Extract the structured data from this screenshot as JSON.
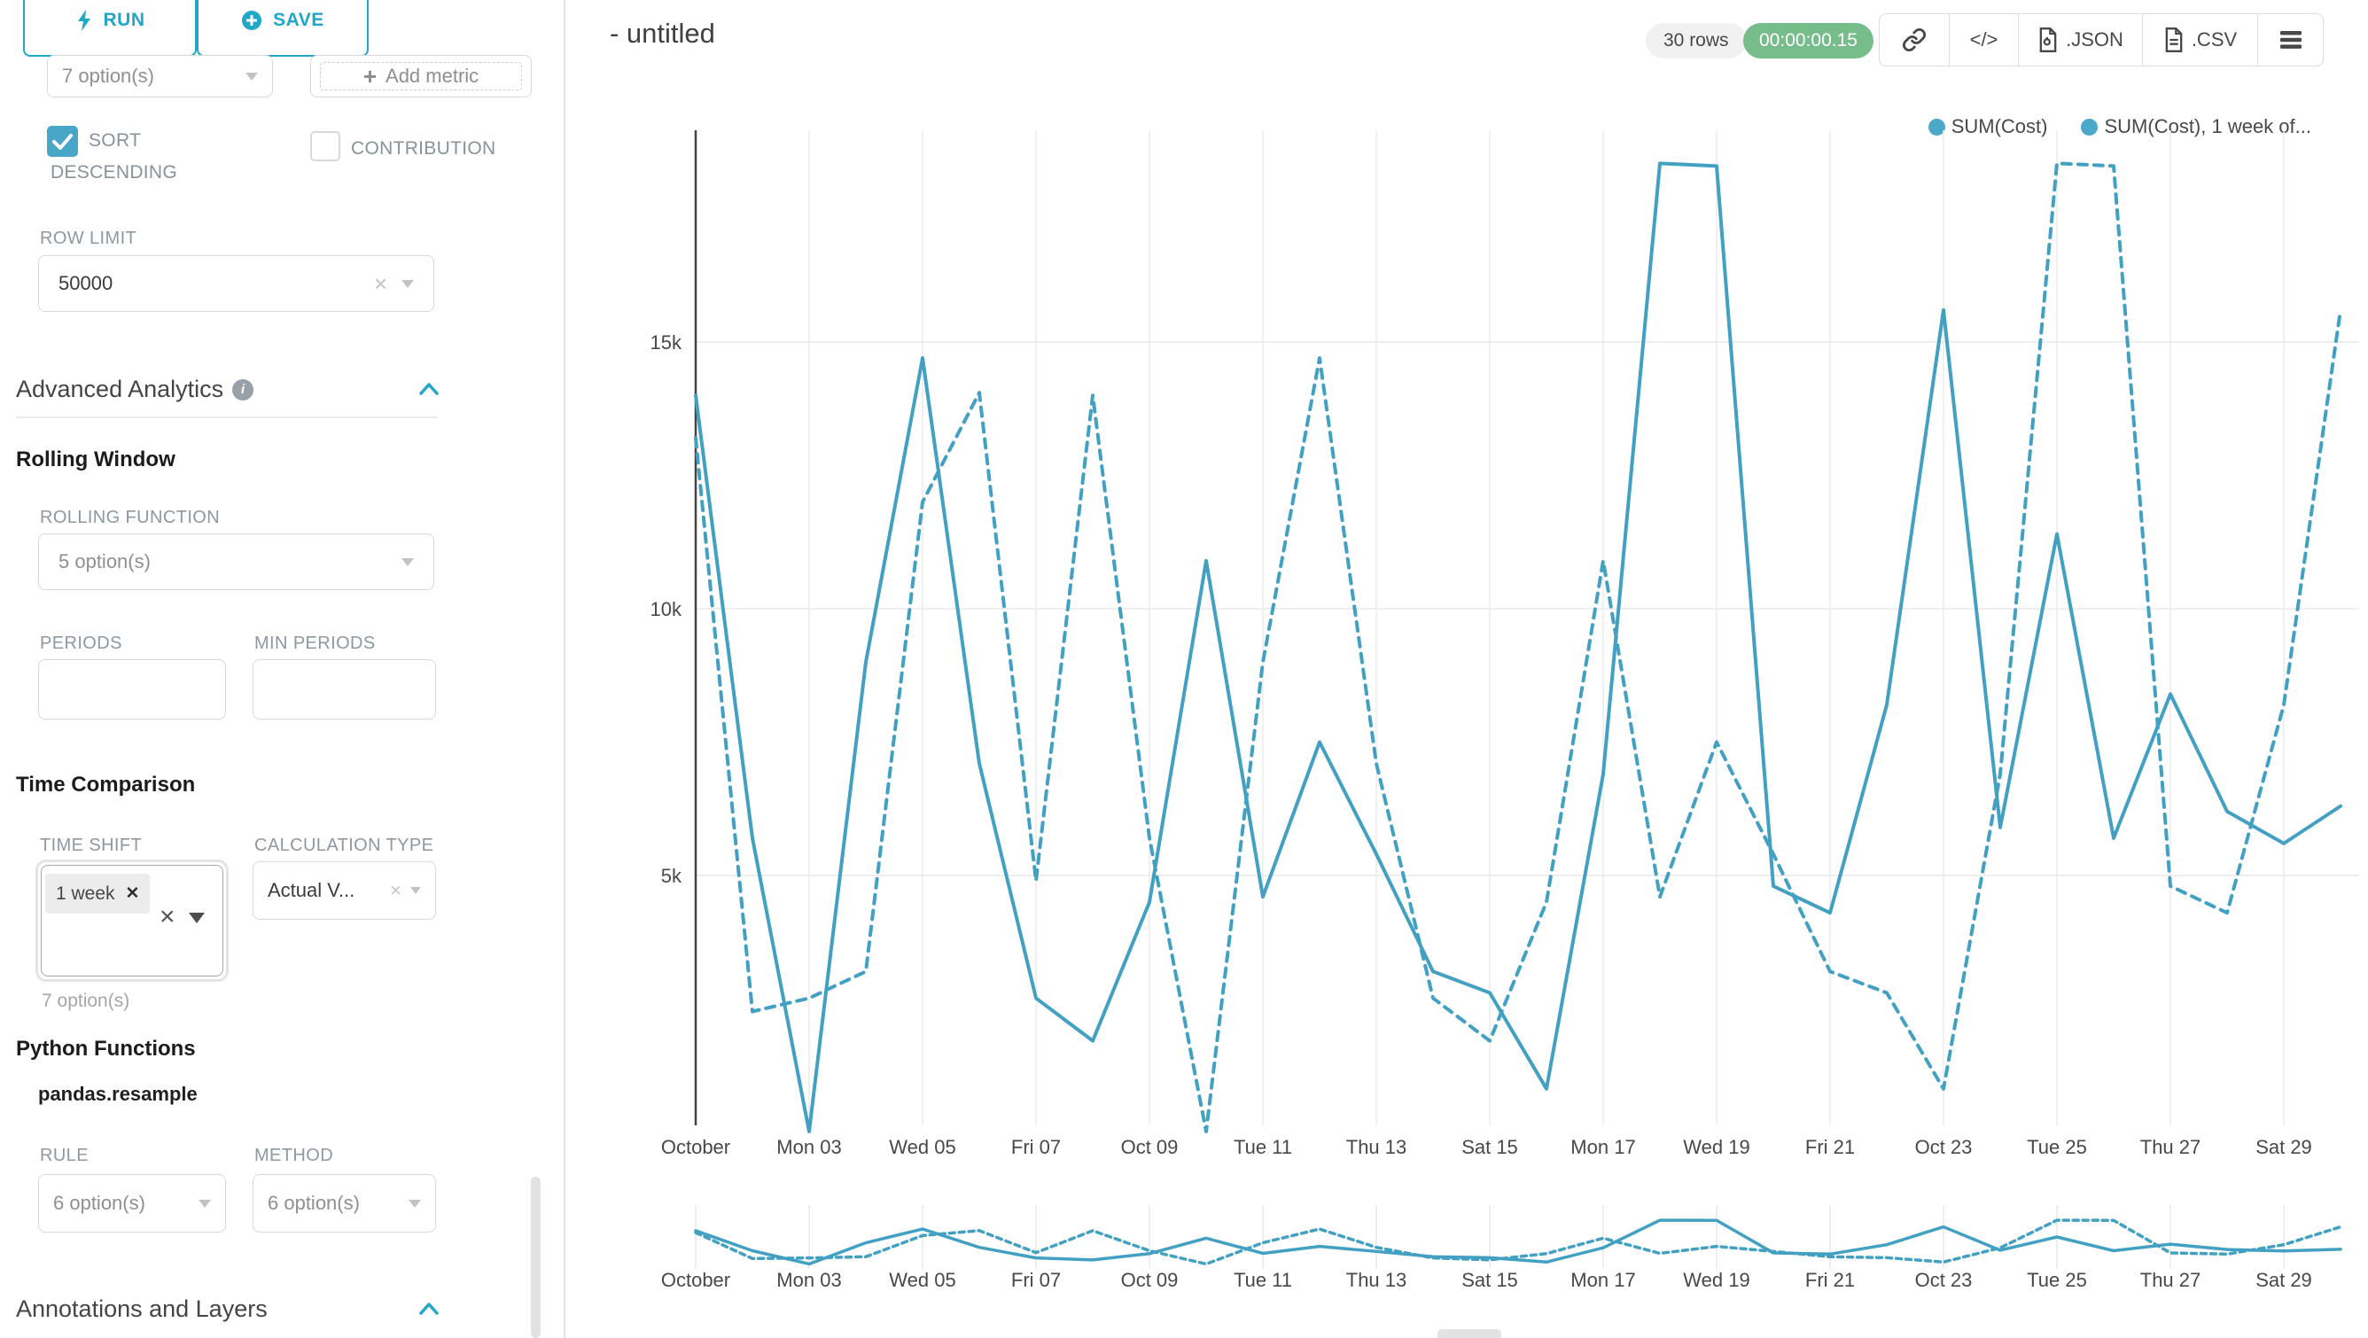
{
  "colors": {
    "accent": "#20A7C9",
    "line": "#42A0C2",
    "legend_dot": "#4BA8C9",
    "timer_green": "#77BD8C",
    "checkbox_checked": "#48A7C9"
  },
  "sidebar": {
    "run_label": "RUN",
    "save_label": "SAVE",
    "series_select_value": "7 option(s)",
    "add_metric_label": "Add metric",
    "sort_descending_line1": "SORT",
    "sort_descending_line2": "DESCENDING",
    "contribution_label": "CONTRIBUTION",
    "row_limit_label": "ROW LIMIT",
    "row_limit_value": "50000",
    "advanced_analytics_title": "Advanced Analytics",
    "rolling_window_title": "Rolling Window",
    "rolling_function_label": "ROLLING FUNCTION",
    "rolling_function_value": "5 option(s)",
    "periods_label": "PERIODS",
    "min_periods_label": "MIN PERIODS",
    "time_comparison_title": "Time Comparison",
    "time_shift_label": "TIME SHIFT",
    "time_shift_tag": "1 week",
    "time_shift_hint": "7 option(s)",
    "calculation_type_label": "CALCULATION TYPE",
    "calculation_type_value": "Actual V...",
    "python_functions_title": "Python Functions",
    "python_functions_subtitle": "pandas.resample",
    "rule_label": "RULE",
    "rule_value": "6 option(s)",
    "method_label": "METHOD",
    "method_value": "6 option(s)",
    "annotations_title": "Annotations and Layers"
  },
  "header": {
    "title": "- untitled",
    "rows_badge": "30 rows",
    "timer": "00:00:00.15",
    "code_icon_label": "</>",
    "json_label": ".JSON",
    "csv_label": ".CSV"
  },
  "chart_data": {
    "type": "line",
    "title": "- untitled",
    "n_points": 30,
    "x_tick_labels": [
      "October",
      "Mon 03",
      "Wed 05",
      "Fri 07",
      "Oct 09",
      "Tue 11",
      "Thu 13",
      "Sat 15",
      "Mon 17",
      "Wed 19",
      "Fri 21",
      "Oct 23",
      "Tue 25",
      "Thu 27",
      "Sat 29"
    ],
    "y_ticks": [
      {
        "label": "5k",
        "value": 5000
      },
      {
        "label": "10k",
        "value": 10000
      },
      {
        "label": "15k",
        "value": 15000
      }
    ],
    "ylim": [
      0,
      19000
    ],
    "grid": true,
    "legend_position": "top-right",
    "series": [
      {
        "name": "SUM(Cost)",
        "line_style": "solid",
        "color": "#42A0C2",
        "values": [
          14000,
          5700,
          200,
          9000,
          14700,
          7100,
          2700,
          1900,
          4500,
          10900,
          4600,
          7500,
          5400,
          3200,
          2800,
          1000,
          6900,
          18350,
          18300,
          4800,
          4300,
          8200,
          15600,
          5900,
          11400,
          5700,
          8400,
          6200,
          5600,
          6300
        ]
      },
      {
        "name": "SUM(Cost), 1 week of...",
        "line_style": "dashed",
        "color": "#42A0C2",
        "values": [
          13200,
          2450,
          2700,
          3200,
          12000,
          14050,
          4900,
          14000,
          5700,
          200,
          9000,
          14700,
          7100,
          2700,
          1900,
          4500,
          10900,
          4600,
          7500,
          5400,
          3200,
          2800,
          1000,
          6900,
          18350,
          18300,
          4800,
          4300,
          8200,
          15600
        ]
      }
    ]
  }
}
